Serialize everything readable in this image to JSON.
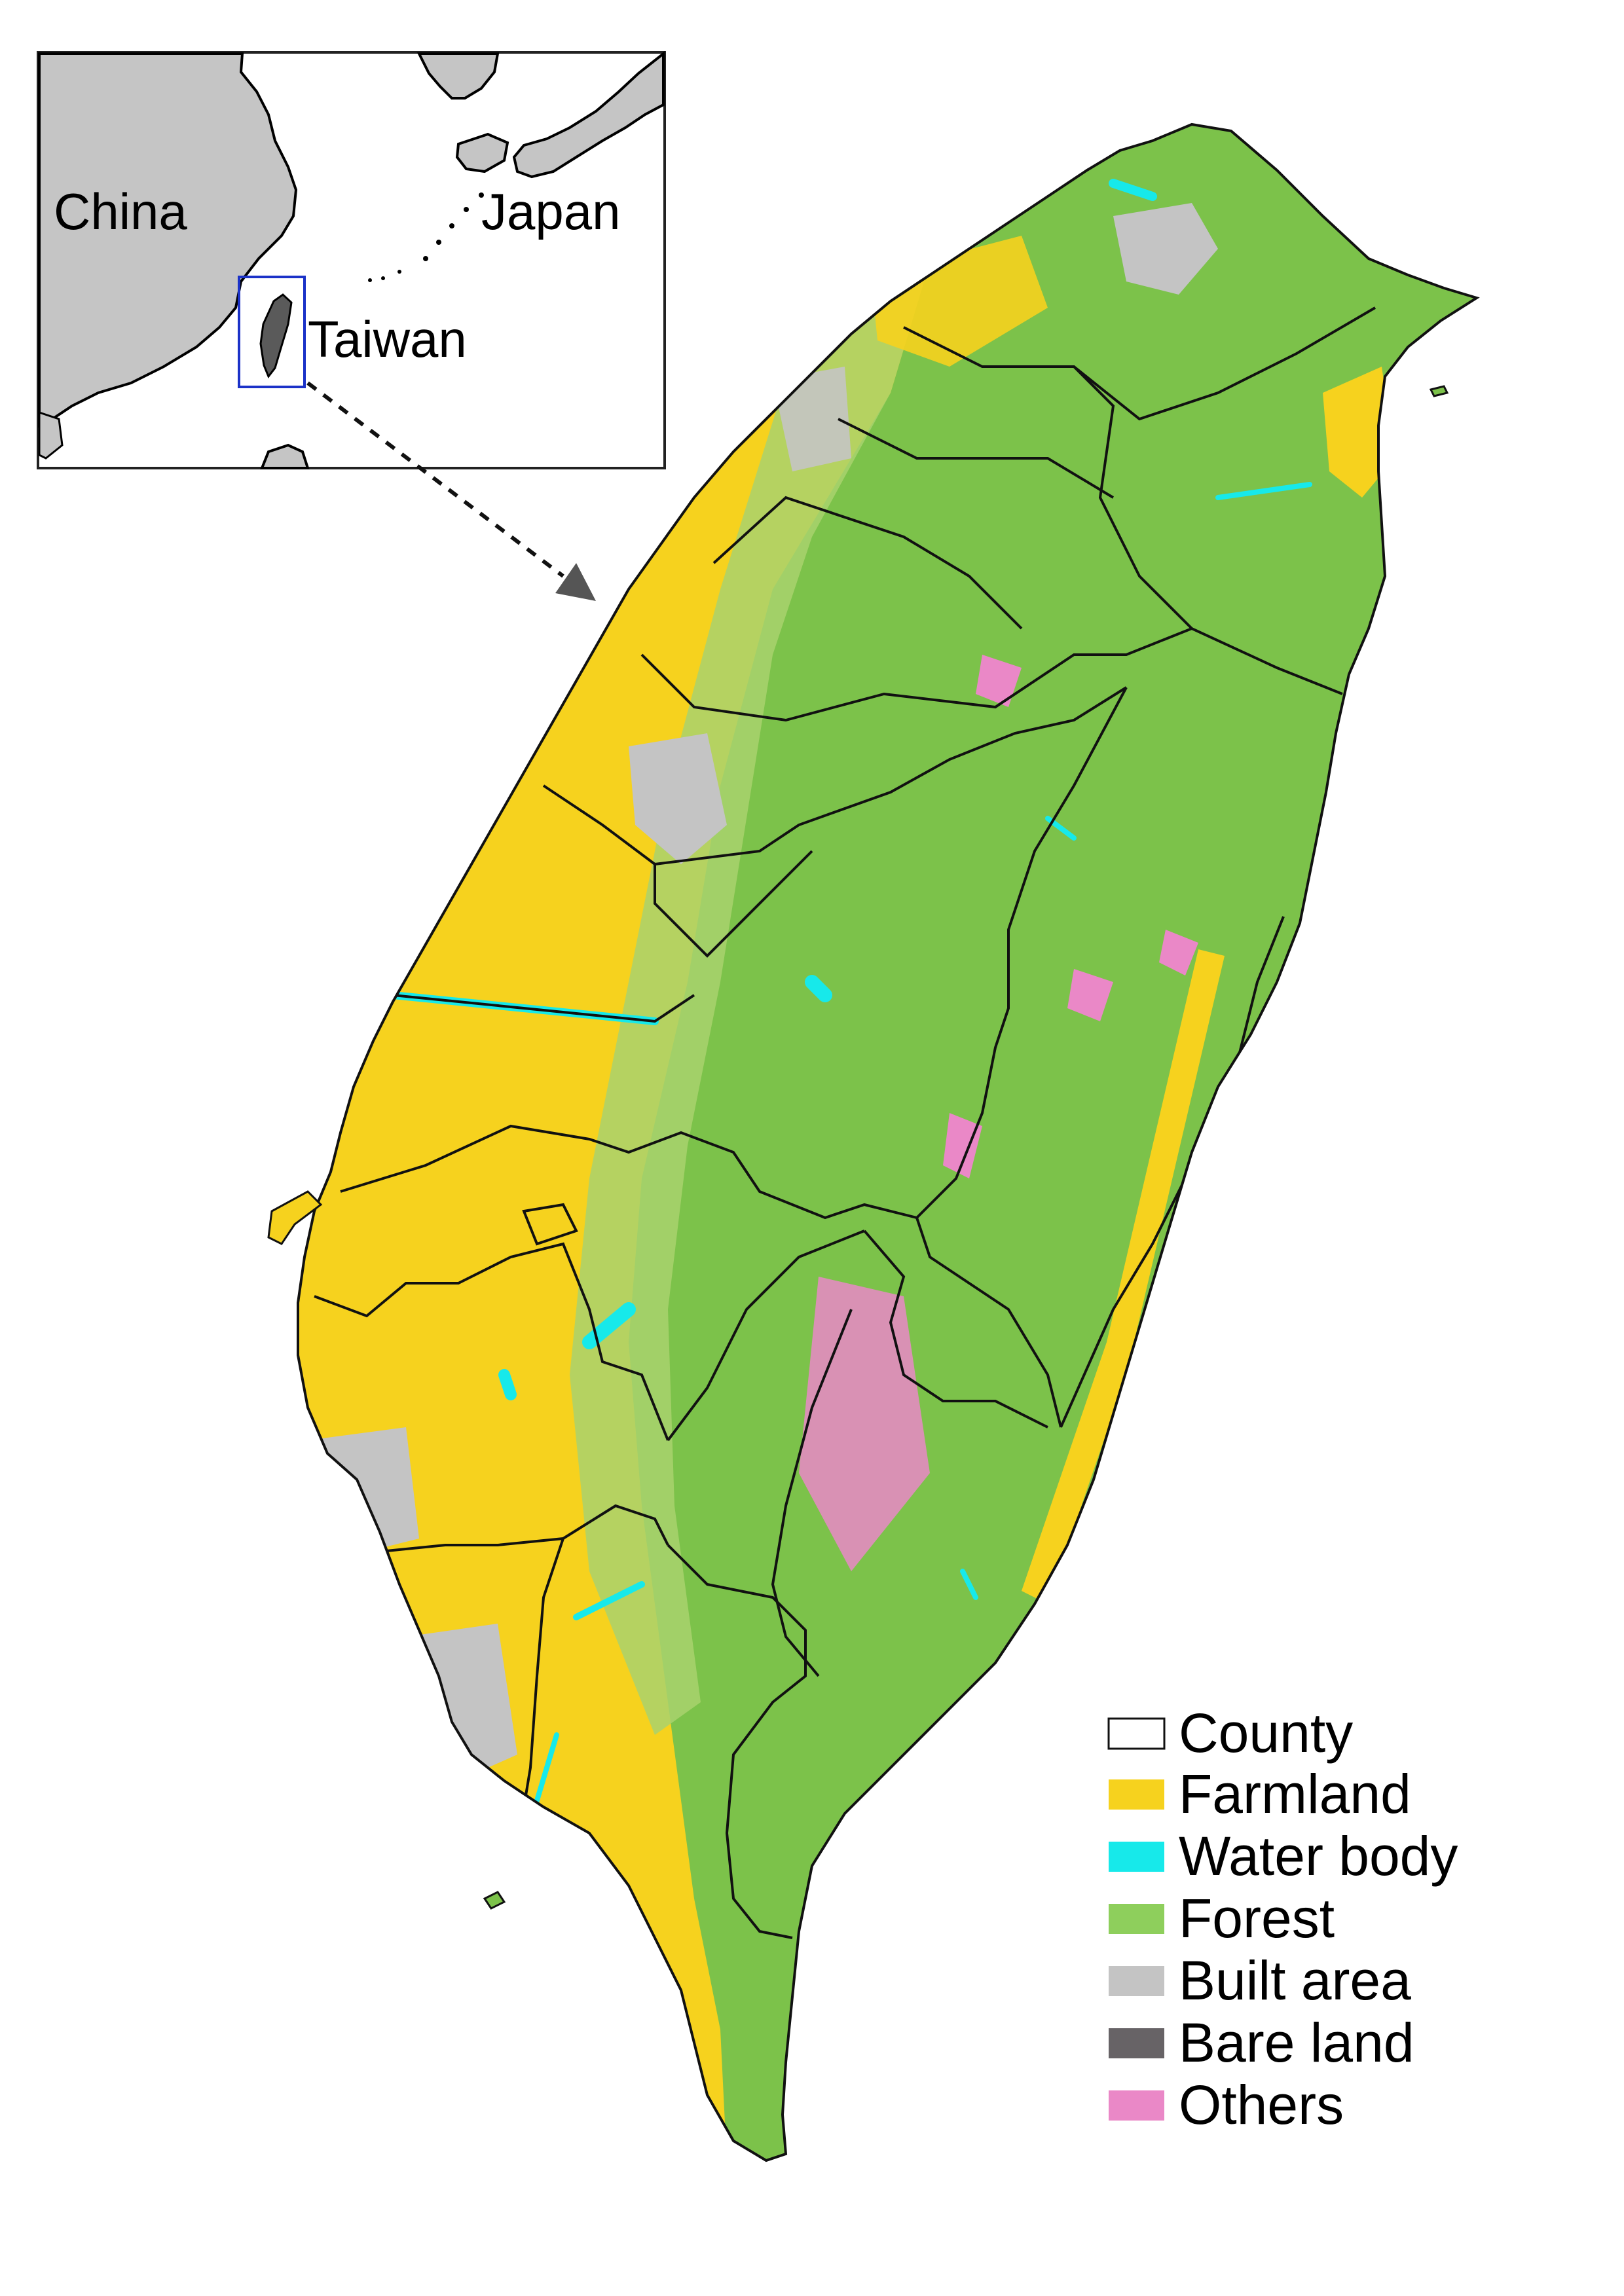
{
  "inset": {
    "labels": {
      "china": "China",
      "japan": "Japan",
      "taiwan": "Taiwan"
    }
  },
  "legend": {
    "items": [
      {
        "label": "County",
        "swatch": "#ffffff",
        "outline": true
      },
      {
        "label": "Farmland",
        "swatch": "#f6d21e"
      },
      {
        "label": "Water body",
        "swatch": "#17e9ea"
      },
      {
        "label": "Forest",
        "swatch": "#8ecf5c"
      },
      {
        "label": "Built area",
        "swatch": "#c4c4c4"
      },
      {
        "label": "Bare land",
        "swatch": "#676366"
      },
      {
        "label": "Others",
        "swatch": "#ea88c7"
      }
    ]
  },
  "colors": {
    "land_gray": "#c5c5c5",
    "taiwan_dark": "#5a5a5a",
    "highlight_box": "#1b32c8",
    "forest": "#7cc24a",
    "farmland": "#f6d21e",
    "water": "#17e9ea",
    "built": "#c4c4c4",
    "others": "#ea88c7",
    "border": "#111111"
  }
}
